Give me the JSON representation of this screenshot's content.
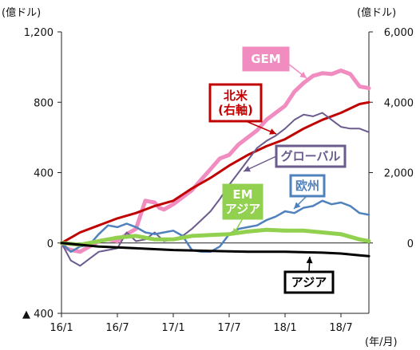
{
  "chart_data": {
    "type": "line",
    "unit_left": "(億ドル)",
    "unit_right": "(億ドル)",
    "unit_x": "(年/月)",
    "y_left_ticks": [
      {
        "value": 1200,
        "label": "1,200"
      },
      {
        "value": 800,
        "label": "800"
      },
      {
        "value": 400,
        "label": "400"
      },
      {
        "value": 0,
        "label": "0"
      },
      {
        "value": -400,
        "label": "▲ 400"
      }
    ],
    "y_right_ticks": [
      {
        "value": 6000,
        "label": "6,000"
      },
      {
        "value": 4000,
        "label": "4,000"
      },
      {
        "value": 2000,
        "label": "2,000"
      },
      {
        "value": 0,
        "label": "0"
      }
    ],
    "ylim_left": [
      -400,
      1200
    ],
    "ylim_right": [
      -2000,
      6000
    ],
    "x_ticks": [
      {
        "value": 0,
        "label": "16/1"
      },
      {
        "value": 6,
        "label": "16/7"
      },
      {
        "value": 12,
        "label": "17/1"
      },
      {
        "value": 18,
        "label": "17/7"
      },
      {
        "value": 24,
        "label": "18/1"
      },
      {
        "value": 30,
        "label": "18/7"
      }
    ],
    "xlim": [
      0,
      33
    ],
    "series": [
      {
        "name": "GEM",
        "color": "#f08cc0",
        "width": 5,
        "axis": "left",
        "label_lines": [
          "GEM"
        ],
        "label_color": "#ffffff",
        "label_bg": "#f08cc0",
        "label_border": "#f08cc0",
        "points": [
          [
            0,
            0
          ],
          [
            0.5,
            -30
          ],
          [
            1,
            -40
          ],
          [
            2,
            -50
          ],
          [
            3,
            -20
          ],
          [
            4,
            10
          ],
          [
            5,
            20
          ],
          [
            6,
            10
          ],
          [
            7,
            50
          ],
          [
            8,
            80
          ],
          [
            9,
            240
          ],
          [
            10,
            230
          ],
          [
            10.5,
            200
          ],
          [
            11,
            190
          ],
          [
            12,
            220
          ],
          [
            13,
            260
          ],
          [
            14,
            300
          ],
          [
            15,
            360
          ],
          [
            16,
            420
          ],
          [
            17,
            480
          ],
          [
            18,
            500
          ],
          [
            19,
            560
          ],
          [
            20,
            600
          ],
          [
            21,
            640
          ],
          [
            22,
            700
          ],
          [
            23,
            740
          ],
          [
            24,
            780
          ],
          [
            25,
            860
          ],
          [
            26,
            910
          ],
          [
            27,
            950
          ],
          [
            28,
            965
          ],
          [
            29,
            960
          ],
          [
            30,
            980
          ],
          [
            31,
            960
          ],
          [
            32,
            890
          ],
          [
            33,
            880
          ]
        ]
      },
      {
        "name": "北米(右軸)",
        "color": "#c00000",
        "width": 3,
        "axis": "right",
        "label_lines": [
          "北米",
          "(右軸)"
        ],
        "label_color": "#c00000",
        "label_bg": "#ffffff",
        "label_border": "#c00000",
        "points": [
          [
            0,
            0
          ],
          [
            2,
            300
          ],
          [
            4,
            500
          ],
          [
            6,
            700
          ],
          [
            8,
            850
          ],
          [
            10,
            1050
          ],
          [
            12,
            1200
          ],
          [
            14,
            1550
          ],
          [
            16,
            1850
          ],
          [
            18,
            2200
          ],
          [
            20,
            2500
          ],
          [
            22,
            2750
          ],
          [
            24,
            2950
          ],
          [
            26,
            3250
          ],
          [
            28,
            3500
          ],
          [
            30,
            3700
          ],
          [
            32,
            3950
          ],
          [
            33,
            4000
          ]
        ]
      },
      {
        "name": "グローバル",
        "color": "#6b5b8e",
        "width": 2,
        "axis": "left",
        "label_lines": [
          "グローバル"
        ],
        "label_color": "#6b5b8e",
        "label_bg": "#ffffff",
        "label_border": "#6b5b8e",
        "points": [
          [
            0,
            0
          ],
          [
            1,
            -100
          ],
          [
            2,
            -130
          ],
          [
            3,
            -90
          ],
          [
            4,
            -50
          ],
          [
            5,
            -40
          ],
          [
            6,
            -30
          ],
          [
            7,
            60
          ],
          [
            8,
            10
          ],
          [
            9,
            20
          ],
          [
            10,
            60
          ],
          [
            11,
            10
          ],
          [
            12,
            20
          ],
          [
            13,
            40
          ],
          [
            14,
            80
          ],
          [
            15,
            130
          ],
          [
            16,
            180
          ],
          [
            17,
            250
          ],
          [
            18,
            330
          ],
          [
            19,
            400
          ],
          [
            20,
            470
          ],
          [
            21,
            540
          ],
          [
            22,
            580
          ],
          [
            23,
            610
          ],
          [
            24,
            650
          ],
          [
            25,
            700
          ],
          [
            26,
            730
          ],
          [
            27,
            720
          ],
          [
            28,
            740
          ],
          [
            29,
            700
          ],
          [
            30,
            660
          ],
          [
            31,
            650
          ],
          [
            32,
            650
          ],
          [
            33,
            630
          ]
        ]
      },
      {
        "name": "欧州",
        "color": "#4f81bd",
        "width": 2.5,
        "axis": "left",
        "label_lines": [
          "欧州"
        ],
        "label_color": "#4f81bd",
        "label_bg": "#ffffff",
        "label_border": "#4f81bd",
        "points": [
          [
            0,
            0
          ],
          [
            1,
            -50
          ],
          [
            2,
            -20
          ],
          [
            3,
            -10
          ],
          [
            4,
            50
          ],
          [
            5,
            100
          ],
          [
            6,
            90
          ],
          [
            7,
            110
          ],
          [
            8,
            90
          ],
          [
            9,
            60
          ],
          [
            10,
            50
          ],
          [
            11,
            60
          ],
          [
            12,
            70
          ],
          [
            13,
            40
          ],
          [
            14,
            -40
          ],
          [
            15,
            -50
          ],
          [
            16,
            -50
          ],
          [
            17,
            -20
          ],
          [
            18,
            50
          ],
          [
            19,
            80
          ],
          [
            20,
            90
          ],
          [
            21,
            100
          ],
          [
            22,
            130
          ],
          [
            23,
            150
          ],
          [
            24,
            180
          ],
          [
            25,
            170
          ],
          [
            26,
            200
          ],
          [
            27,
            210
          ],
          [
            28,
            240
          ],
          [
            29,
            220
          ],
          [
            30,
            230
          ],
          [
            31,
            210
          ],
          [
            32,
            170
          ],
          [
            33,
            160
          ]
        ]
      },
      {
        "name": "EMアジア",
        "color": "#92d050",
        "width": 5,
        "axis": "left",
        "label_lines": [
          "EM",
          "アジア"
        ],
        "label_color": "#ffffff",
        "label_bg": "#92d050",
        "label_border": "#92d050",
        "points": [
          [
            0,
            0
          ],
          [
            2,
            -10
          ],
          [
            4,
            10
          ],
          [
            6,
            30
          ],
          [
            8,
            40
          ],
          [
            10,
            20
          ],
          [
            12,
            20
          ],
          [
            14,
            40
          ],
          [
            16,
            45
          ],
          [
            18,
            50
          ],
          [
            20,
            65
          ],
          [
            22,
            75
          ],
          [
            24,
            70
          ],
          [
            26,
            70
          ],
          [
            28,
            60
          ],
          [
            30,
            50
          ],
          [
            32,
            20
          ],
          [
            33,
            10
          ]
        ]
      },
      {
        "name": "アジア",
        "color": "#000000",
        "width": 3,
        "axis": "left",
        "label_lines": [
          "アジア"
        ],
        "label_color": "#000000",
        "label_bg": "#ffffff",
        "label_border": "#000000",
        "points": [
          [
            0,
            0
          ],
          [
            4,
            -20
          ],
          [
            8,
            -30
          ],
          [
            12,
            -40
          ],
          [
            16,
            -45
          ],
          [
            20,
            -50
          ],
          [
            24,
            -50
          ],
          [
            28,
            -55
          ],
          [
            30,
            -60
          ],
          [
            32,
            -70
          ],
          [
            33,
            -75
          ]
        ]
      }
    ]
  }
}
